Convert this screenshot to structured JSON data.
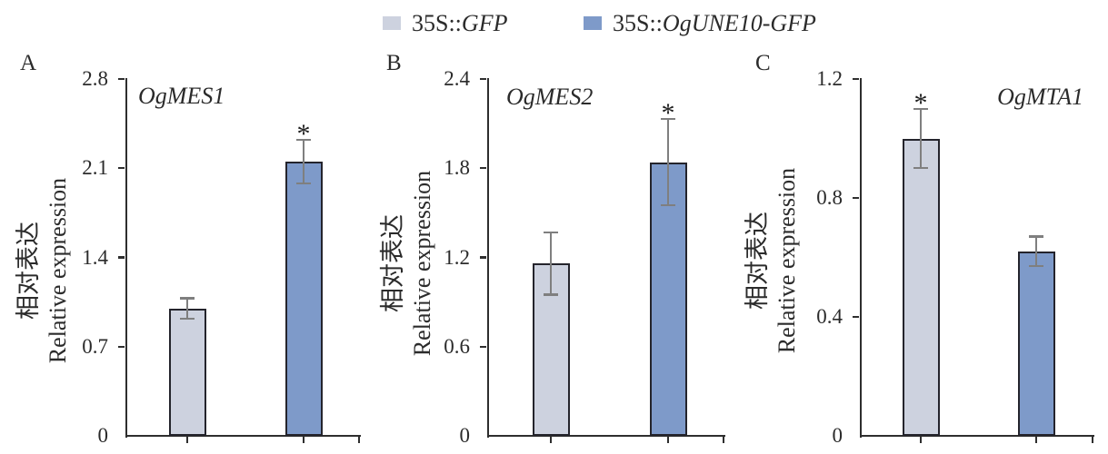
{
  "figure": {
    "background": "#ffffff"
  },
  "colors": {
    "gfp_bar": "#cdd2df",
    "une10_bar": "#7e9ac9",
    "bar_border": "#24242c",
    "axis": "#2e2e2e",
    "error_bar": "#7f7f7f",
    "text": "#2b2b2b"
  },
  "legend": {
    "items": [
      {
        "label_plain": "35S::",
        "label_italic": "GFP",
        "color": "#cdd2df"
      },
      {
        "label_plain": "35S::",
        "label_italic": "OgUNE10-GFP",
        "color": "#7e9ac9"
      }
    ]
  },
  "chart_data": [
    {
      "type": "bar",
      "panel": "A",
      "title": "OgMES1",
      "ylabel_lines": [
        "相对表达",
        "Relative expression"
      ],
      "categories": [
        "35S::GFP",
        "35S::OgUNE10-GFP"
      ],
      "values": [
        1.0,
        2.15
      ],
      "errors": [
        0.08,
        0.17
      ],
      "significance": [
        "",
        "*"
      ],
      "yticks": [
        "0",
        "0.7",
        "1.4",
        "2.1",
        "2.8"
      ],
      "ylim": [
        0,
        2.8
      ],
      "grid": false,
      "legend_position": "top-center-shared"
    },
    {
      "type": "bar",
      "panel": "B",
      "title": "OgMES2",
      "ylabel_lines": [
        "相对表达",
        "Relative expression"
      ],
      "categories": [
        "35S::GFP",
        "35S::OgUNE10-GFP"
      ],
      "values": [
        1.16,
        1.84
      ],
      "errors": [
        0.21,
        0.29
      ],
      "significance": [
        "",
        "*"
      ],
      "yticks": [
        "0",
        "0.6",
        "1.2",
        "1.8",
        "2.4"
      ],
      "ylim": [
        0,
        2.4
      ],
      "grid": false,
      "legend_position": "top-center-shared"
    },
    {
      "type": "bar",
      "panel": "C",
      "title": "OgMTA1",
      "ylabel_lines": [
        "相对表达",
        "Relative expression"
      ],
      "categories": [
        "35S::GFP",
        "35S::OgUNE10-GFP"
      ],
      "values": [
        1.0,
        0.62
      ],
      "errors": [
        0.1,
        0.05
      ],
      "significance": [
        "*",
        ""
      ],
      "yticks": [
        "0",
        "0.4",
        "0.8",
        "1.2"
      ],
      "ylim": [
        0,
        1.2
      ],
      "grid": false,
      "legend_position": "top-center-shared"
    }
  ]
}
